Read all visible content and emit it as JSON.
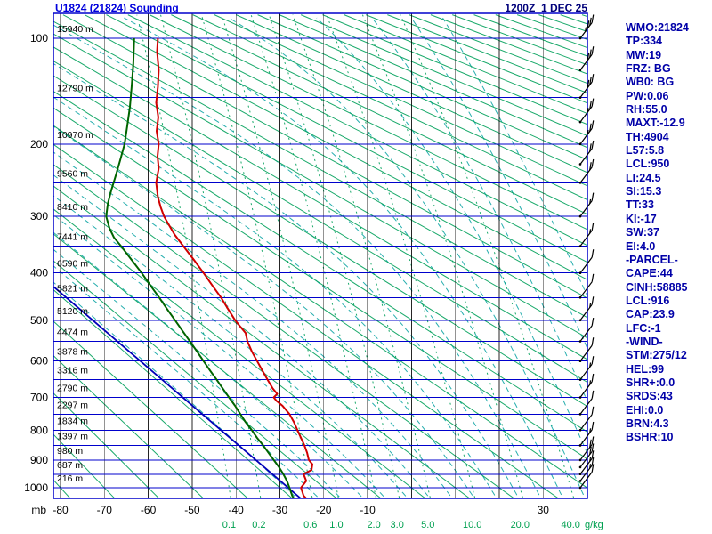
{
  "header": {
    "title": "U1824 (21824) Sounding",
    "datetime": "1200Z  1 DEC 25"
  },
  "side_panel": {
    "lines": [
      "WMO:21824",
      "TP:334",
      "MW:19",
      "FRZ: BG",
      "WB0: BG",
      "PW:0.06",
      "RH:55.0",
      "MAXT:-12.9",
      "TH:4904",
      "L57:5.8",
      "LCL:950",
      "LI:24.5",
      "SI:15.3",
      "TT:33",
      "KI:-17",
      "SW:37",
      "EI:4.0",
      "-PARCEL-",
      "CAPE:44",
      "CINH:58885",
      "LCL:916",
      "CAP:23.9",
      "LFC:-1",
      "-WIND-",
      "STM:275/12",
      "HEL:99",
      "SHR+:0.0",
      "SRDS:43",
      "EHI:0.0",
      "BRN:4.3",
      "BSHR:10"
    ]
  },
  "chart_data": {
    "type": "sounding-stuve",
    "station": "U1824 (21824)",
    "valid": "1200Z 1 DEC 25",
    "pressure_axis_label": "mb",
    "pressure_ticks_mb": [
      100,
      200,
      300,
      400,
      500,
      600,
      700,
      800,
      900,
      1000
    ],
    "isobar_step_mb": 50,
    "pressure_range_mb": [
      84,
      1058
    ],
    "temp_labels_c": [
      -80,
      -70,
      -60,
      -50,
      -40,
      -30,
      -20,
      -10,
      30
    ],
    "isotherm_min_c": -80,
    "isotherm_max_c": 40,
    "isotherm_step_c": 10,
    "mixing_ratio_gkg": [
      0.1,
      0.2,
      0.6,
      1.0,
      2.0,
      3.0,
      5.0,
      10.0,
      20.0,
      40.0
    ],
    "mixing_ratio_unit": "g/kg",
    "dry_adiabats_theta_c": {
      "min": -80,
      "max": 360,
      "step": 10
    },
    "moist_adiabats_t0_c": {
      "min": -25,
      "max": 60,
      "step": 5
    },
    "height_labels": [
      {
        "p": 100,
        "label": "15940 m"
      },
      {
        "p": 150,
        "label": "12790 m"
      },
      {
        "p": 200,
        "label": "10970 m"
      },
      {
        "p": 250,
        "label": "9560 m"
      },
      {
        "p": 300,
        "label": "8410 m"
      },
      {
        "p": 350,
        "label": "7441 m"
      },
      {
        "p": 400,
        "label": "6590 m"
      },
      {
        "p": 450,
        "label": "5821 m"
      },
      {
        "p": 500,
        "label": "5120 m"
      },
      {
        "p": 550,
        "label": "4474 m"
      },
      {
        "p": 600,
        "label": "3878 m"
      },
      {
        "p": 650,
        "label": "3316 m"
      },
      {
        "p": 700,
        "label": "2790 m"
      },
      {
        "p": 750,
        "label": "2297 m"
      },
      {
        "p": 800,
        "label": "1834 m"
      },
      {
        "p": 850,
        "label": "1397 m"
      },
      {
        "p": 900,
        "label": "980 m"
      },
      {
        "p": 950,
        "label": "687 m"
      },
      {
        "p": 1000,
        "label": "216 m"
      }
    ],
    "temperature_profile_p_t": [
      [
        1048,
        -23.6
      ],
      [
        1030,
        -24.6
      ],
      [
        1000,
        -25.2
      ],
      [
        975,
        -24.0
      ],
      [
        950,
        -24.6
      ],
      [
        935,
        -22.8
      ],
      [
        915,
        -22.6
      ],
      [
        900,
        -23.4
      ],
      [
        875,
        -23.8
      ],
      [
        850,
        -24.4
      ],
      [
        825,
        -25.2
      ],
      [
        800,
        -26.0
      ],
      [
        775,
        -26.8
      ],
      [
        750,
        -27.8
      ],
      [
        725,
        -29.4
      ],
      [
        710,
        -30.8
      ],
      [
        700,
        -31.4
      ],
      [
        690,
        -30.6
      ],
      [
        675,
        -31.6
      ],
      [
        650,
        -32.8
      ],
      [
        625,
        -34.0
      ],
      [
        600,
        -35.2
      ],
      [
        575,
        -36.4
      ],
      [
        550,
        -37.4
      ],
      [
        530,
        -37.8
      ],
      [
        515,
        -39.0
      ],
      [
        500,
        -40.2
      ],
      [
        475,
        -41.8
      ],
      [
        450,
        -43.4
      ],
      [
        425,
        -45.4
      ],
      [
        400,
        -47.4
      ],
      [
        375,
        -49.6
      ],
      [
        350,
        -52.0
      ],
      [
        330,
        -54.0
      ],
      [
        315,
        -55.2
      ],
      [
        300,
        -56.4
      ],
      [
        285,
        -57.2
      ],
      [
        270,
        -57.8
      ],
      [
        250,
        -58.2
      ],
      [
        230,
        -57.6
      ],
      [
        215,
        -57.9
      ],
      [
        200,
        -57.6
      ],
      [
        185,
        -58.1
      ],
      [
        170,
        -57.7
      ],
      [
        155,
        -58.2
      ],
      [
        140,
        -57.8
      ],
      [
        125,
        -57.6
      ],
      [
        110,
        -58.0
      ],
      [
        100,
        -57.8
      ]
    ],
    "dewpoint_profile_p_t": [
      [
        1048,
        -26.6
      ],
      [
        1030,
        -27.2
      ],
      [
        1000,
        -27.8
      ],
      [
        975,
        -28.4
      ],
      [
        950,
        -29.2
      ],
      [
        925,
        -30.2
      ],
      [
        900,
        -31.4
      ],
      [
        875,
        -32.6
      ],
      [
        850,
        -33.8
      ],
      [
        825,
        -35.2
      ],
      [
        800,
        -36.4
      ],
      [
        775,
        -37.8
      ],
      [
        750,
        -39.0
      ],
      [
        725,
        -40.2
      ],
      [
        700,
        -41.6
      ],
      [
        675,
        -43.0
      ],
      [
        650,
        -44.4
      ],
      [
        625,
        -45.9
      ],
      [
        600,
        -47.4
      ],
      [
        575,
        -48.9
      ],
      [
        550,
        -50.5
      ],
      [
        525,
        -52.2
      ],
      [
        500,
        -53.9
      ],
      [
        475,
        -55.7
      ],
      [
        450,
        -57.5
      ],
      [
        425,
        -59.5
      ],
      [
        400,
        -61.5
      ],
      [
        375,
        -63.8
      ],
      [
        350,
        -66.2
      ],
      [
        335,
        -67.8
      ],
      [
        320,
        -68.8
      ],
      [
        300,
        -69.6
      ],
      [
        280,
        -69.2
      ],
      [
        260,
        -68.4
      ],
      [
        240,
        -67.4
      ],
      [
        220,
        -66.4
      ],
      [
        200,
        -65.4
      ],
      [
        180,
        -64.8
      ],
      [
        160,
        -64.2
      ],
      [
        140,
        -63.8
      ],
      [
        120,
        -63.4
      ],
      [
        100,
        -63.2
      ]
    ],
    "parcel_line_p_t": [
      [
        1055,
        -24.3
      ],
      [
        428,
        -81.5
      ]
    ],
    "wind_barbs": [
      {
        "p": 100,
        "kt": 35
      },
      {
        "p": 125,
        "kt": 30
      },
      {
        "p": 150,
        "kt": 30
      },
      {
        "p": 175,
        "kt": 25
      },
      {
        "p": 200,
        "kt": 25
      },
      {
        "p": 225,
        "kt": 20
      },
      {
        "p": 250,
        "kt": 20
      },
      {
        "p": 300,
        "kt": 15
      },
      {
        "p": 350,
        "kt": 15
      },
      {
        "p": 400,
        "kt": 10
      },
      {
        "p": 450,
        "kt": 10
      },
      {
        "p": 500,
        "kt": 15
      },
      {
        "p": 550,
        "kt": 10
      },
      {
        "p": 600,
        "kt": 10
      },
      {
        "p": 650,
        "kt": 15
      },
      {
        "p": 700,
        "kt": 15
      },
      {
        "p": 750,
        "kt": 10
      },
      {
        "p": 800,
        "kt": 10
      },
      {
        "p": 850,
        "kt": 15
      },
      {
        "p": 900,
        "kt": 20
      },
      {
        "p": 925,
        "kt": 20
      },
      {
        "p": 950,
        "kt": 15
      },
      {
        "p": 975,
        "kt": 15
      },
      {
        "p": 1000,
        "kt": 10
      }
    ],
    "colors": {
      "border": "#0000cc",
      "isobar": "#0000cc",
      "isotherm": "#000000",
      "dry_adiabat": "#00a05a",
      "moist_adiabat": "#00a0a0",
      "mixing_ratio": "#00a05a",
      "temperature": "#d00000",
      "dewpoint": "#006400",
      "parcel": "#0000b8",
      "barb": "#000000",
      "axis_text": "#000000",
      "mixing_text": "#00a050"
    }
  }
}
